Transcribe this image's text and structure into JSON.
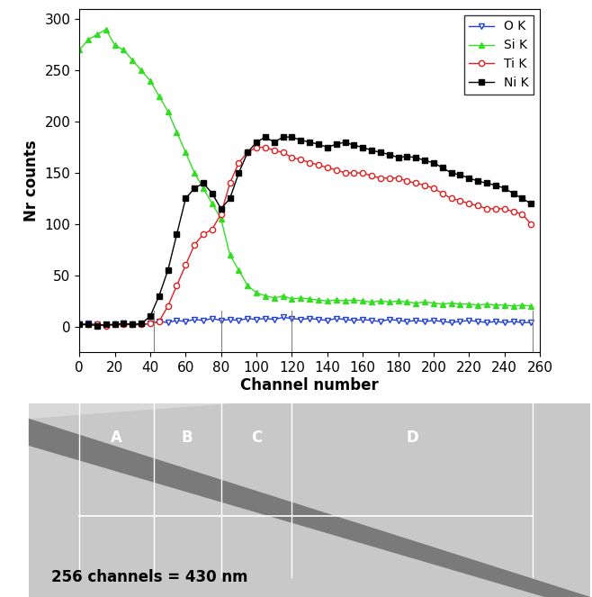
{
  "chart_data": {
    "type": "line",
    "x_label": "Channel number",
    "y_label": "Nr counts",
    "xlim": [
      0,
      260
    ],
    "xticks": [
      0,
      20,
      40,
      60,
      80,
      100,
      120,
      140,
      160,
      180,
      200,
      220,
      240,
      260
    ],
    "ylim": [
      -25,
      310
    ],
    "yticks": [
      0,
      50,
      100,
      150,
      200,
      250,
      300
    ],
    "grid": false,
    "legend": "upper right",
    "x": [
      0,
      5,
      10,
      15,
      20,
      25,
      30,
      35,
      40,
      45,
      50,
      55,
      60,
      65,
      70,
      75,
      80,
      85,
      90,
      95,
      100,
      105,
      110,
      115,
      120,
      125,
      130,
      135,
      140,
      145,
      150,
      155,
      160,
      165,
      170,
      175,
      180,
      185,
      190,
      195,
      200,
      205,
      210,
      215,
      220,
      225,
      230,
      235,
      240,
      245,
      250,
      255
    ],
    "series": [
      {
        "name": "O K",
        "color": "#1f3fd6",
        "marker": "triangle_down",
        "line_style": "solid",
        "values": [
          2,
          3,
          2,
          1,
          2,
          3,
          2,
          2,
          3,
          5,
          4,
          6,
          5,
          7,
          6,
          8,
          6,
          7,
          6,
          8,
          7,
          8,
          7,
          9,
          8,
          7,
          8,
          7,
          6,
          8,
          7,
          6,
          7,
          6,
          5,
          7,
          6,
          5,
          6,
          5,
          6,
          5,
          4,
          5,
          6,
          5,
          4,
          5,
          4,
          5,
          4,
          4
        ]
      },
      {
        "name": "Si K",
        "color": "#33dd22",
        "marker": "triangle_up",
        "line_style": "solid",
        "values": [
          270,
          280,
          285,
          290,
          275,
          270,
          260,
          250,
          240,
          225,
          210,
          190,
          170,
          150,
          135,
          120,
          105,
          70,
          55,
          40,
          33,
          30,
          28,
          30,
          27,
          28,
          27,
          26,
          25,
          26,
          25,
          26,
          25,
          24,
          25,
          24,
          25,
          24,
          23,
          24,
          23,
          22,
          23,
          22,
          22,
          21,
          22,
          21,
          21,
          20,
          21,
          20
        ]
      },
      {
        "name": "Ti K",
        "color": "#e02020",
        "marker": "circle",
        "line_style": "solid",
        "values": [
          2,
          2,
          2,
          1,
          2,
          2,
          2,
          2,
          3,
          5,
          20,
          40,
          60,
          80,
          90,
          95,
          110,
          140,
          160,
          170,
          175,
          175,
          172,
          170,
          165,
          163,
          160,
          158,
          155,
          153,
          150,
          150,
          150,
          147,
          145,
          145,
          145,
          142,
          140,
          138,
          135,
          130,
          125,
          123,
          120,
          118,
          115,
          115,
          115,
          112,
          110,
          100
        ]
      },
      {
        "name": "Ni K",
        "color": "#000000",
        "marker": "square",
        "line_style": "solid",
        "values": [
          2,
          2,
          1,
          2,
          2,
          3,
          2,
          3,
          10,
          30,
          55,
          90,
          125,
          135,
          140,
          130,
          115,
          125,
          150,
          170,
          180,
          185,
          180,
          185,
          185,
          182,
          180,
          178,
          175,
          178,
          180,
          177,
          175,
          172,
          170,
          168,
          165,
          166,
          165,
          162,
          160,
          155,
          150,
          148,
          145,
          142,
          140,
          138,
          135,
          130,
          125,
          120
        ]
      }
    ],
    "regions": [
      {
        "label": "A",
        "start": 0,
        "end": 42
      },
      {
        "label": "B",
        "start": 42,
        "end": 80
      },
      {
        "label": "C",
        "start": 80,
        "end": 120
      },
      {
        "label": "D",
        "start": 120,
        "end": 256
      }
    ],
    "scale_note": "256 channels = 430 nm"
  }
}
